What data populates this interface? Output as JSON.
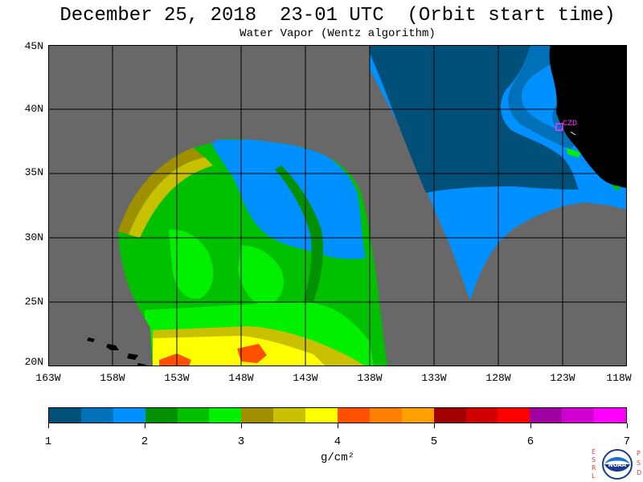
{
  "title": "December 25, 2018  23-01 UTC  (Orbit start time)",
  "subtitle": "Water Vapor (Wentz algorithm)",
  "map": {
    "y_axis_labels": [
      "45N",
      "40N",
      "35N",
      "30N",
      "25N",
      "20N"
    ],
    "x_axis_labels": [
      "163W",
      "158W",
      "153W",
      "148W",
      "143W",
      "138W",
      "133W",
      "128W",
      "123W",
      "118W"
    ],
    "station_label": "CZD",
    "background_color": "#686868",
    "land_color": "#000000",
    "station_color": "#ff33ff",
    "lat_range": [
      20,
      45
    ],
    "lon_range": [
      -163,
      -118
    ],
    "grid": "on"
  },
  "colorbar": {
    "colors": [
      "#00507a",
      "#0070b8",
      "#0090ff",
      "#009000",
      "#00c000",
      "#00f000",
      "#a09000",
      "#c8c000",
      "#ffff00",
      "#ff5000",
      "#ff8000",
      "#ffa000",
      "#a00000",
      "#d00000",
      "#ff0000",
      "#a000a0",
      "#d000d0",
      "#ff00ff"
    ],
    "tick_labels": [
      "1",
      "2",
      "3",
      "4",
      "5",
      "6",
      "7"
    ],
    "units": "g/cm²",
    "range": [
      1,
      7
    ]
  },
  "logo": {
    "left_letters": [
      "E",
      "S",
      "R",
      "L"
    ],
    "right_letters": [
      "P",
      "S",
      "D"
    ],
    "seal_text": "NOAA"
  }
}
